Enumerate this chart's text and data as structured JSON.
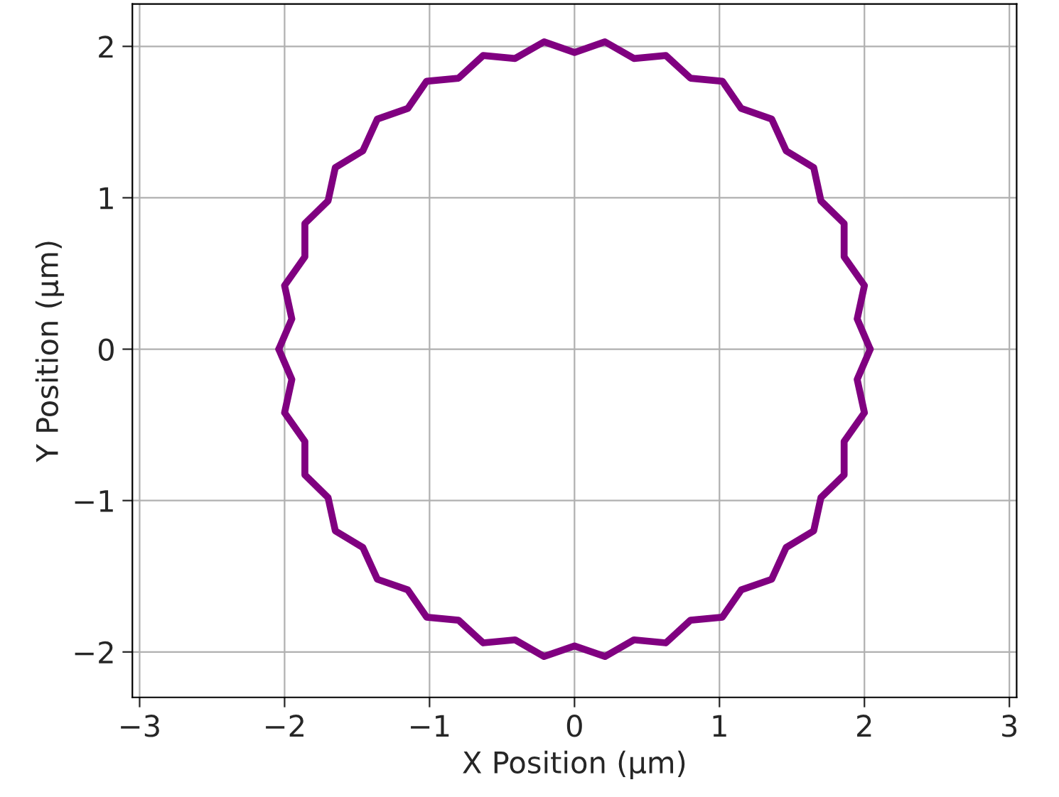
{
  "chart_data": {
    "type": "line",
    "xlabel": "X Position (μm)",
    "ylabel": "Y Position (μm)",
    "xlim": [
      -3.05,
      3.05
    ],
    "ylim": [
      -2.3,
      2.28
    ],
    "xticks": [
      -3,
      -2,
      -1,
      0,
      1,
      2,
      3
    ],
    "yticks": [
      -2,
      -1,
      0,
      1,
      2
    ],
    "grid": true,
    "marker": "none",
    "line_style": "solid",
    "series": [
      {
        "color": "#800080",
        "x": [
          2.04,
          1.95,
          2.0,
          1.86,
          1.86,
          1.7,
          1.65,
          1.46,
          1.36,
          1.15,
          1.02,
          0.8,
          0.63,
          0.41,
          0.21,
          0,
          -0.21,
          -0.41,
          -0.63,
          -0.8,
          -1.02,
          -1.15,
          -1.36,
          -1.46,
          -1.65,
          -1.7,
          -1.86,
          -1.86,
          -2.0,
          -1.95,
          -2.04
        ],
        "values": [
          0,
          0.2,
          0.42,
          0.61,
          0.83,
          0.98,
          1.2,
          1.31,
          1.52,
          1.59,
          1.77,
          1.79,
          1.94,
          1.92,
          2.03,
          1.96,
          2.03,
          1.92,
          1.94,
          1.79,
          1.77,
          1.59,
          1.52,
          1.31,
          1.2,
          0.98,
          0.83,
          0.61,
          0.42,
          0.2,
          0
        ]
      },
      {
        "color": "#800080",
        "x": [
          -2.04,
          -1.95,
          -2.0,
          -1.86,
          -1.86,
          -1.7,
          -1.65,
          -1.46,
          -1.36,
          -1.15,
          -1.02,
          -0.8,
          -0.63,
          -0.41,
          -0.21,
          0,
          0.21,
          0.41,
          0.63,
          0.8,
          1.02,
          1.15,
          1.36,
          1.46,
          1.65,
          1.7,
          1.86,
          1.86,
          2.0,
          1.95,
          2.04
        ],
        "values": [
          0,
          -0.2,
          -0.42,
          -0.61,
          -0.83,
          -0.98,
          -1.2,
          -1.31,
          -1.52,
          -1.59,
          -1.77,
          -1.79,
          -1.94,
          -1.92,
          -2.03,
          -1.96,
          -2.03,
          -1.92,
          -1.94,
          -1.79,
          -1.77,
          -1.59,
          -1.52,
          -1.31,
          -1.2,
          -0.98,
          -0.83,
          -0.61,
          -0.42,
          -0.2,
          0
        ]
      }
    ]
  }
}
